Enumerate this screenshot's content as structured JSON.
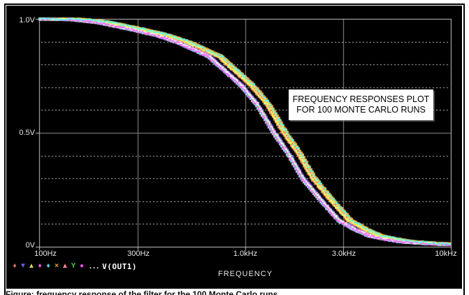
{
  "colors": {
    "page_bg": "#ffffff",
    "window_bg": "#000000",
    "frame": "#c8c8c8",
    "grid_major": "#8f8f8f",
    "grid_minor_dots": "#c4c4c4",
    "tick_text": "#e8e8e8",
    "annotation_bg": "#ffffff",
    "annotation_text": "#000000",
    "page_border": "#000000"
  },
  "y_axis": {
    "tick_labels": [
      "1.0V",
      "0.5V",
      "0V"
    ]
  },
  "x_axis": {
    "tick_labels": [
      "100Hz",
      "300Hz",
      "1.0kHz",
      "3.0kHz",
      "10kHz"
    ],
    "title": "FREQUENCY"
  },
  "annotation": {
    "line1": "FREQUENCY RESPONSES PLOT",
    "line2": "FOR 100 MONTE CARLO RUNS"
  },
  "legend": {
    "markers": [
      {
        "glyph": "♦",
        "color": "#e8705a",
        "name": "diamond"
      },
      {
        "glyph": "▼",
        "color": "#6a58f0",
        "name": "triangle-down"
      },
      {
        "glyph": "▲",
        "color": "#d8d448",
        "name": "triangle-up"
      },
      {
        "glyph": "♦",
        "color": "#ee5cee",
        "name": "diamond"
      },
      {
        "glyph": "♦",
        "color": "#5ad8d8",
        "name": "diamond"
      },
      {
        "glyph": "×",
        "color": "#e0a832",
        "name": "x-mark"
      },
      {
        "glyph": "▲",
        "color": "#f08898",
        "name": "triangle-up"
      },
      {
        "glyph": "Y",
        "color": "#58c858",
        "name": "y-mark"
      },
      {
        "glyph": "●",
        "color": "#ee50ee",
        "name": "dot"
      }
    ],
    "ellipsis": "...",
    "trace_label": "V(OUT1)"
  },
  "caption_fragment": "Figure: frequency response of the filter for the 100 Monte Carlo runs",
  "chart_data": {
    "type": "line",
    "x_scale": "log",
    "x_range_hz": [
      100,
      10000
    ],
    "x_tick_values_hz": [
      100,
      300,
      1000,
      3000,
      10000
    ],
    "x_tick_labels": [
      "100Hz",
      "300Hz",
      "1.0kHz",
      "3.0kHz",
      "10kHz"
    ],
    "xlabel": "FREQUENCY",
    "y_range_v": [
      0,
      1.0
    ],
    "y_major_ticks_v": [
      1.0,
      0.5,
      0
    ],
    "y_major_tick_labels": [
      "1.0V",
      "0.5V",
      "0V"
    ],
    "y_minor_step_v": 0.1,
    "grid": {
      "major": "solid",
      "minor_horizontal": "dotted",
      "minor_vertical": "none"
    },
    "legend_position": "bottom-left",
    "series_label": "V(OUT1)",
    "monte_carlo_runs": 100,
    "annotation_text": [
      "FREQUENCY RESPONSES PLOT",
      "FOR 100 MONTE CARLO RUNS"
    ],
    "nominal_response": {
      "freq_hz": [
        100,
        150,
        200,
        300,
        400,
        500,
        700,
        1000,
        1200,
        1450,
        1700,
        2000,
        2500,
        3000,
        3600,
        4200,
        5000,
        6000,
        8000,
        10000
      ],
      "v_out": [
        1.0,
        0.997,
        0.985,
        0.952,
        0.925,
        0.895,
        0.835,
        0.71,
        0.625,
        0.5,
        0.41,
        0.3,
        0.195,
        0.115,
        0.075,
        0.048,
        0.034,
        0.022,
        0.014,
        0.01
      ]
    },
    "run_fc_scale_groups": [
      [
        0.93,
        0.98
      ],
      [
        1.04,
        1.12
      ]
    ],
    "trace_palette": [
      "#ffffff",
      "#ffff55",
      "#ff55ff",
      "#55ffff",
      "#66ff66",
      "#ff5555",
      "#6666ff",
      "#ffaa33",
      "#ff88aa",
      "#bbffbb",
      "#cc88ff",
      "#e8e868",
      "#88ddff",
      "#ff8855",
      "#e8e8e8",
      "#ffdd44"
    ]
  }
}
